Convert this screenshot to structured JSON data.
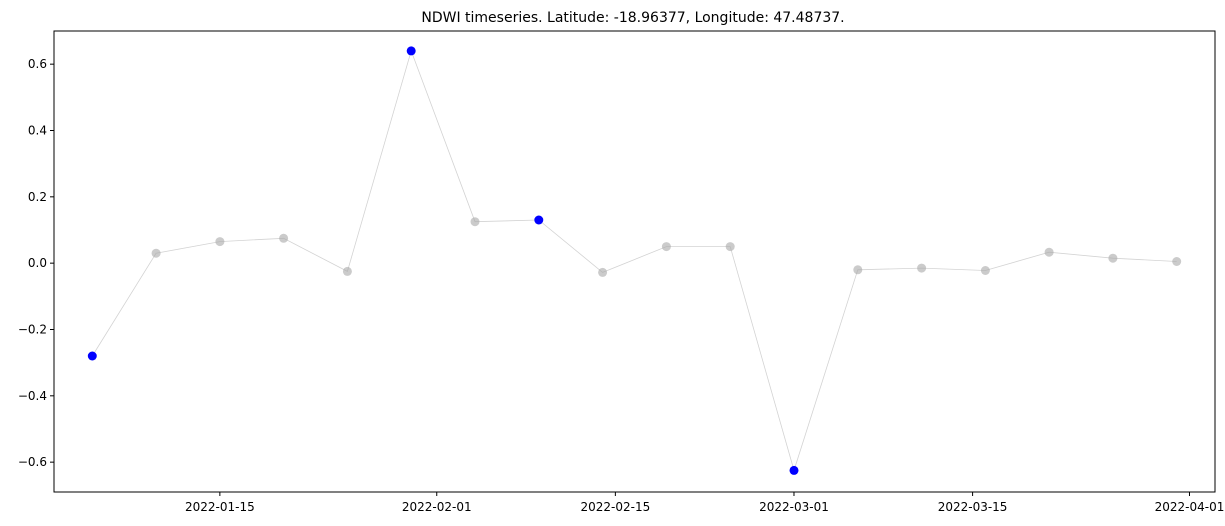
{
  "chart_data": {
    "type": "scatter",
    "title": "NDWI timeseries. Latitude: -18.96377, Longitude: 47.48737.",
    "xlabel": "",
    "ylabel": "",
    "xlim": [
      "2022-01-02",
      "2022-04-03"
    ],
    "ylim": [
      -0.69,
      0.7
    ],
    "x_ticks": [
      "2022-01-15",
      "2022-02-01",
      "2022-02-15",
      "2022-03-01",
      "2022-03-15",
      "2022-04-01"
    ],
    "y_ticks": [
      0.6,
      0.4,
      0.2,
      0.0,
      -0.2,
      -0.4,
      -0.6
    ],
    "y_tick_labels": [
      "0.6",
      "0.4",
      "0.2",
      "0.0",
      "−0.2",
      "−0.4",
      "−0.6"
    ],
    "grid": false,
    "legend": "none",
    "line_color": "#d3d3d3",
    "series": [
      {
        "color": "#a9a9a9",
        "points": [
          {
            "x": "2022-01-05",
            "y": -0.28,
            "highlight": true
          },
          {
            "x": "2022-01-10",
            "y": 0.03,
            "highlight": false
          },
          {
            "x": "2022-01-15",
            "y": 0.065,
            "highlight": false
          },
          {
            "x": "2022-01-20",
            "y": 0.075,
            "highlight": false
          },
          {
            "x": "2022-01-25",
            "y": -0.025,
            "highlight": false
          },
          {
            "x": "2022-01-30",
            "y": 0.64,
            "highlight": true
          },
          {
            "x": "2022-02-04",
            "y": 0.125,
            "highlight": false
          },
          {
            "x": "2022-02-09",
            "y": 0.13,
            "highlight": true
          },
          {
            "x": "2022-02-14",
            "y": -0.028,
            "highlight": false
          },
          {
            "x": "2022-02-19",
            "y": 0.05,
            "highlight": false
          },
          {
            "x": "2022-02-24",
            "y": 0.05,
            "highlight": false
          },
          {
            "x": "2022-03-01",
            "y": -0.625,
            "highlight": true
          },
          {
            "x": "2022-03-06",
            "y": -0.02,
            "highlight": false
          },
          {
            "x": "2022-03-11",
            "y": -0.015,
            "highlight": false
          },
          {
            "x": "2022-03-16",
            "y": -0.022,
            "highlight": false
          },
          {
            "x": "2022-03-21",
            "y": 0.033,
            "highlight": false
          },
          {
            "x": "2022-03-26",
            "y": 0.015,
            "highlight": false
          },
          {
            "x": "2022-03-31",
            "y": 0.005,
            "highlight": false
          }
        ]
      }
    ],
    "highlight_color": "#0000ff"
  }
}
